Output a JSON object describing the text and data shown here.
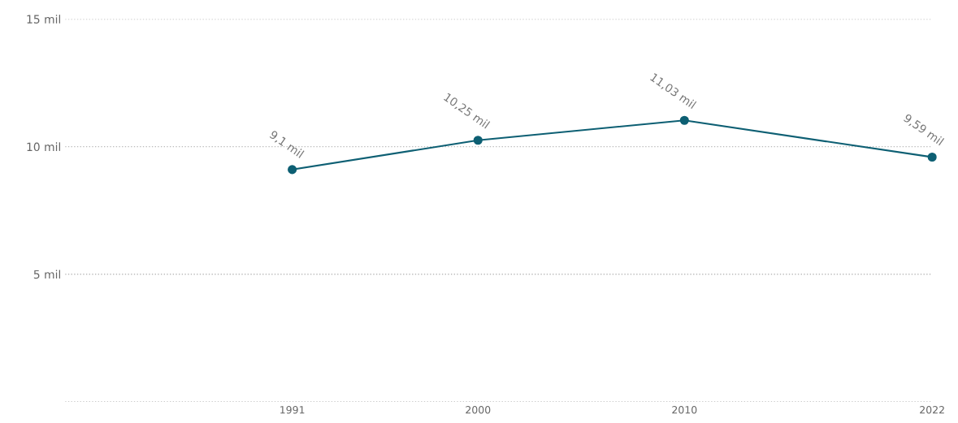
{
  "chart_data": {
    "type": "line",
    "x": [
      1991,
      2000,
      2010,
      2022
    ],
    "series": [
      {
        "color": "#0d5f73",
        "values": [
          9.1,
          10.25,
          11.03,
          9.59
        ],
        "value_labels": [
          "9,1 mil",
          "10,25 mil",
          "11,03 mil",
          "9,59 mil"
        ]
      }
    ],
    "xlim": [
      1980,
      2022
    ],
    "xticks": [
      1991,
      2000,
      2010,
      2022
    ],
    "ylim": [
      0,
      15
    ],
    "yticks": [
      {
        "value": 0,
        "label": null
      },
      {
        "value": 5,
        "label": "5 mil"
      },
      {
        "value": 10,
        "label": "10 mil"
      },
      {
        "value": 15,
        "label": "15 mil"
      }
    ],
    "grid": "y",
    "marker": "circle",
    "line_style": "solid",
    "legend": false
  }
}
